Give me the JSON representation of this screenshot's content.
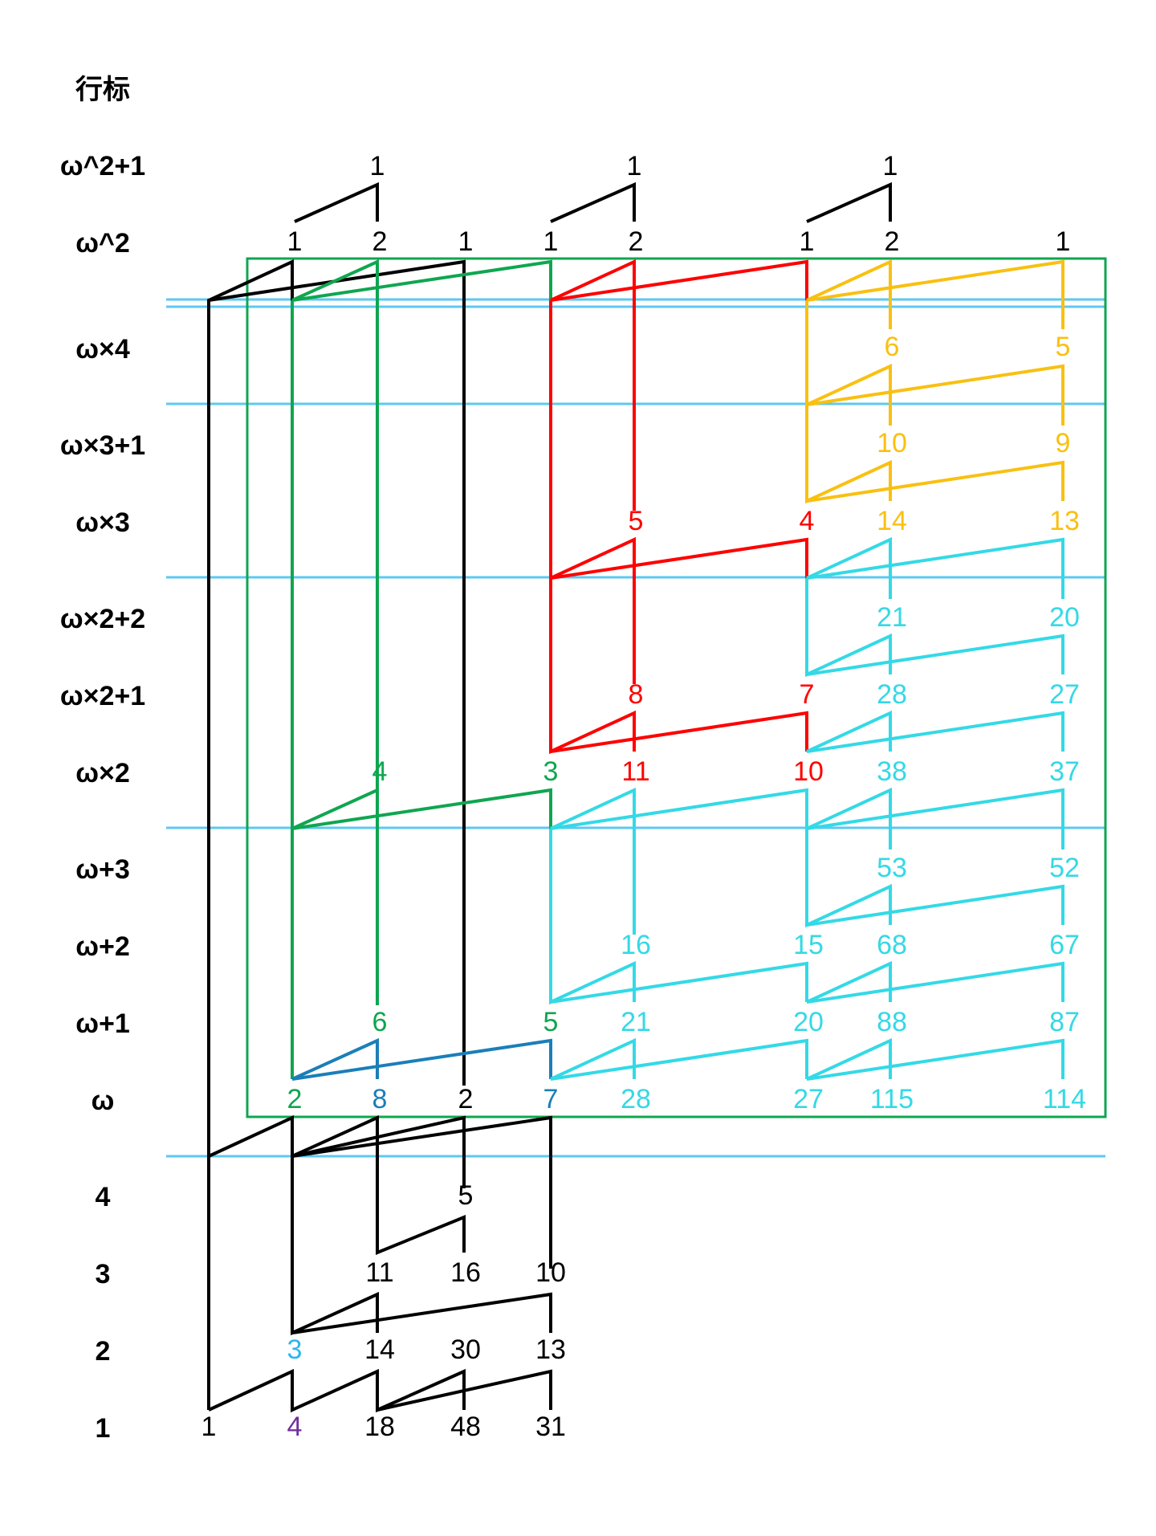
{
  "header": "行标",
  "colors": {
    "black": "#000000",
    "green": "#0fa650",
    "red": "#ff0000",
    "yellow": "#f9c011",
    "cyan": "#34d9e6",
    "blue": "#1a7fb8",
    "lightblue": "#5cc8f2",
    "skyblue": "#2eb6ee",
    "purple": "#7030a0"
  },
  "row_labels": [
    "ω^2+1",
    "ω^2",
    "ω×4",
    "ω×3+1",
    "ω×3",
    "ω×2+2",
    "ω×2+1",
    "ω×2",
    "ω+3",
    "ω+2",
    "ω+1",
    "ω",
    "4",
    "3",
    "2",
    "1"
  ],
  "values": {
    "w2p1": [
      "1",
      "1",
      "1"
    ],
    "w2": [
      "1",
      "2",
      "1",
      "1",
      "2",
      "1",
      "2",
      "1"
    ],
    "w4": [
      "6",
      "5"
    ],
    "w3p1": [
      "10",
      "9"
    ],
    "w3": [
      "5",
      "4",
      "14",
      "13"
    ],
    "w2p2": [
      "21",
      "20"
    ],
    "w2p1r": [
      "8",
      "7",
      "28",
      "27"
    ],
    "w2r": [
      "4",
      "3",
      "11",
      "10",
      "38",
      "37"
    ],
    "wp3": [
      "53",
      "52"
    ],
    "wp2": [
      "16",
      "15",
      "68",
      "67"
    ],
    "wp1": [
      "6",
      "5",
      "21",
      "20",
      "88",
      "87"
    ],
    "w": [
      "2",
      "8",
      "2",
      "7",
      "28",
      "27",
      "115",
      "114"
    ],
    "r4": [
      "5"
    ],
    "r3": [
      "11",
      "16",
      "10"
    ],
    "r2": [
      "3",
      "14",
      "30",
      "13"
    ],
    "r1": [
      "1",
      "4",
      "18",
      "48",
      "31"
    ]
  }
}
